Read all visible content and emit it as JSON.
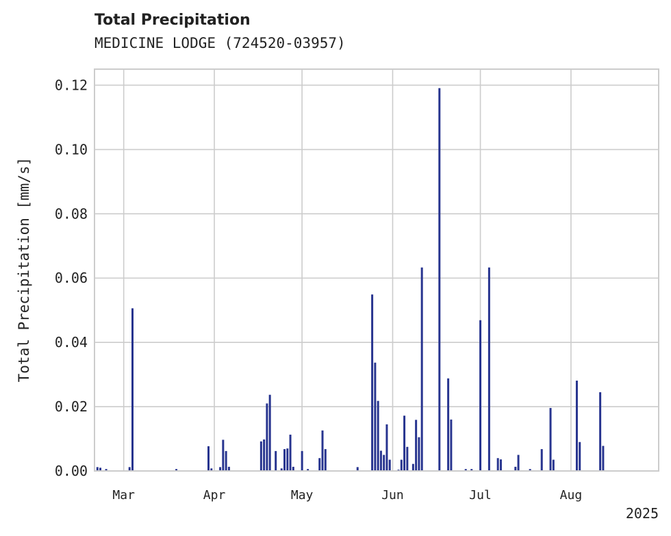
{
  "title": "Total Precipitation",
  "subtitle": "MEDICINE LODGE (724520-03957)",
  "chart_data": {
    "type": "bar",
    "title": "Total Precipitation",
    "subtitle": "MEDICINE LODGE (724520-03957)",
    "ylabel": "Total Precipitation [mm/s]",
    "xlabel": "",
    "ylim": [
      0,
      0.125
    ],
    "xlim": [
      "2025-02-19",
      "2025-08-31"
    ],
    "yticks": [
      "0.00",
      "0.02",
      "0.04",
      "0.06",
      "0.08",
      "0.10",
      "0.12"
    ],
    "xticks": [
      {
        "date": "2025-03-01",
        "label": "Mar"
      },
      {
        "date": "2025-04-01",
        "label": "Apr"
      },
      {
        "date": "2025-05-01",
        "label": "May"
      },
      {
        "date": "2025-06-01",
        "label": "Jun"
      },
      {
        "date": "2025-07-01",
        "label": "Jul"
      },
      {
        "date": "2025-08-01",
        "label": "Aug"
      }
    ],
    "year_label": "2025",
    "grid": true,
    "color": "#27348f",
    "series": [
      {
        "points": [
          [
            "2025-02-20",
            0.0012
          ],
          [
            "2025-02-21",
            0.001
          ],
          [
            "2025-02-23",
            0.0006
          ],
          [
            "2025-03-03",
            0.0012
          ],
          [
            "2025-03-04",
            0.0506
          ],
          [
            "2025-03-19",
            0.0006
          ],
          [
            "2025-03-30",
            0.0077
          ],
          [
            "2025-03-31",
            0.0008
          ],
          [
            "2025-04-03",
            0.0012
          ],
          [
            "2025-04-04",
            0.0097
          ],
          [
            "2025-04-05",
            0.0062
          ],
          [
            "2025-04-06",
            0.0013
          ],
          [
            "2025-04-17",
            0.0092
          ],
          [
            "2025-04-18",
            0.0098
          ],
          [
            "2025-04-19",
            0.021
          ],
          [
            "2025-04-20",
            0.0237
          ],
          [
            "2025-04-22",
            0.0062
          ],
          [
            "2025-04-24",
            0.0008
          ],
          [
            "2025-04-25",
            0.0068
          ],
          [
            "2025-04-26",
            0.007
          ],
          [
            "2025-04-27",
            0.0113
          ],
          [
            "2025-04-28",
            0.0013
          ],
          [
            "2025-05-01",
            0.0062
          ],
          [
            "2025-05-03",
            0.0006
          ],
          [
            "2025-05-07",
            0.004
          ],
          [
            "2025-05-08",
            0.0126
          ],
          [
            "2025-05-09",
            0.0068
          ],
          [
            "2025-05-20",
            0.0012
          ],
          [
            "2025-05-25",
            0.0549
          ],
          [
            "2025-05-26",
            0.0337
          ],
          [
            "2025-05-27",
            0.0218
          ],
          [
            "2025-05-28",
            0.0063
          ],
          [
            "2025-05-29",
            0.005
          ],
          [
            "2025-05-30",
            0.0145
          ],
          [
            "2025-05-31",
            0.0035
          ],
          [
            "2025-06-03",
            0.0004
          ],
          [
            "2025-06-04",
            0.0035
          ],
          [
            "2025-06-05",
            0.0172
          ],
          [
            "2025-06-06",
            0.0075
          ],
          [
            "2025-06-08",
            0.0022
          ],
          [
            "2025-06-09",
            0.0159
          ],
          [
            "2025-06-10",
            0.0105
          ],
          [
            "2025-06-11",
            0.0633
          ],
          [
            "2025-06-17",
            0.1191
          ],
          [
            "2025-06-20",
            0.0288
          ],
          [
            "2025-06-21",
            0.016
          ],
          [
            "2025-06-26",
            0.0006
          ],
          [
            "2025-06-28",
            0.0006
          ],
          [
            "2025-07-01",
            0.0469
          ],
          [
            "2025-07-04",
            0.0633
          ],
          [
            "2025-07-07",
            0.004
          ],
          [
            "2025-07-08",
            0.0036
          ],
          [
            "2025-07-13",
            0.0013
          ],
          [
            "2025-07-14",
            0.005
          ],
          [
            "2025-07-18",
            0.0006
          ],
          [
            "2025-07-22",
            0.0068
          ],
          [
            "2025-07-25",
            0.0196
          ],
          [
            "2025-07-26",
            0.0035
          ],
          [
            "2025-08-03",
            0.0281
          ],
          [
            "2025-08-04",
            0.009
          ],
          [
            "2025-08-11",
            0.0245
          ],
          [
            "2025-08-12",
            0.0078
          ]
        ]
      }
    ]
  }
}
